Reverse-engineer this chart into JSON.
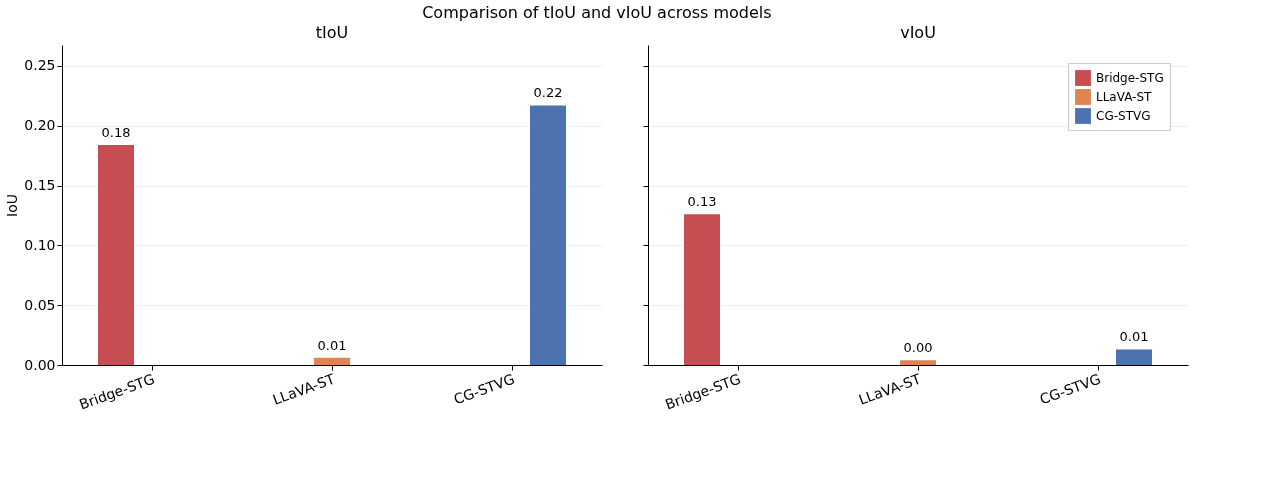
{
  "chart_data": [
    {
      "type": "bar",
      "title": "tIoU",
      "annotations": [
        "Comparison of tIoU and vIoU across models"
      ],
      "ylabel": "IoU",
      "categories": [
        "Bridge-STG",
        "LLaVA-ST",
        "CG-STVG"
      ],
      "series": [
        {
          "name": "Bridge-STG",
          "color": "#c44e52",
          "values": [
            0.184,
            null,
            null
          ],
          "value_labels": [
            "0.18",
            null,
            null
          ]
        },
        {
          "name": "LLaVA-ST",
          "color": "#dd8452",
          "values": [
            null,
            0.006,
            null
          ],
          "value_labels": [
            null,
            "0.01",
            null
          ]
        },
        {
          "name": "CG-STVG",
          "color": "#4c72b0",
          "values": [
            null,
            null,
            0.217
          ],
          "value_labels": [
            null,
            null,
            "0.22"
          ]
        }
      ],
      "ylim": [
        0,
        0.2675
      ],
      "yticks": [
        "0.00",
        "0.05",
        "0.10",
        "0.15",
        "0.20",
        "0.25"
      ],
      "grid": "y",
      "legend": false
    },
    {
      "type": "bar",
      "title": "vIoU",
      "categories": [
        "Bridge-STG",
        "LLaVA-ST",
        "CG-STVG"
      ],
      "series": [
        {
          "name": "Bridge-STG",
          "color": "#c44e52",
          "values": [
            0.126,
            null,
            null
          ],
          "value_labels": [
            "0.13",
            null,
            null
          ]
        },
        {
          "name": "LLaVA-ST",
          "color": "#dd8452",
          "values": [
            null,
            0.004,
            null
          ],
          "value_labels": [
            null,
            "0.00",
            null
          ]
        },
        {
          "name": "CG-STVG",
          "color": "#4c72b0",
          "values": [
            null,
            null,
            0.013
          ],
          "value_labels": [
            null,
            null,
            "0.01"
          ]
        }
      ],
      "ylim": [
        0,
        0.2675
      ],
      "yticks": [
        {
          "value": 0,
          "label": null
        },
        {
          "value": 0.05,
          "label": null
        },
        {
          "value": 0.1,
          "label": null
        },
        {
          "value": 0.15,
          "label": null
        },
        {
          "value": 0.2,
          "label": null
        },
        {
          "value": 0.25,
          "label": null
        }
      ],
      "grid": "y",
      "legend": "top right",
      "tick_labels": "x"
    }
  ]
}
